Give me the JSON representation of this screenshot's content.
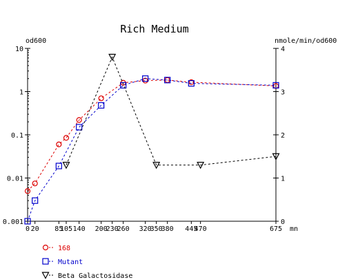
{
  "chart_data": {
    "type": "line",
    "title": "Rich Medium",
    "ylabel_left": "od600",
    "ylabel_right": "nmole/min/od600",
    "xunit": "mn",
    "x_ticks": [
      0,
      20,
      85,
      105,
      140,
      200,
      230,
      260,
      320,
      350,
      380,
      445,
      470,
      675
    ],
    "x_tick_labels": [
      "0",
      "20",
      "85",
      "105",
      "140",
      "200",
      "230",
      "260",
      "320",
      "350",
      "380",
      "445",
      "470",
      "675"
    ],
    "xlim": [
      0,
      675
    ],
    "ylim_left": [
      0.001,
      10
    ],
    "yscale_left": "log",
    "y_ticks_left": [
      "10",
      "1",
      "0.1",
      "0.01",
      "0.001"
    ],
    "ylim_right": [
      0,
      4
    ],
    "y_ticks_right": [
      "4",
      "3",
      "2",
      "1",
      "0"
    ],
    "grid": false,
    "legend_placement": "bottom-left",
    "series": [
      {
        "name": "168",
        "axis": "left",
        "marker": "circle",
        "color": "#dd0000",
        "x": [
          0,
          20,
          85,
          105,
          140,
          200,
          260,
          320,
          380,
          445,
          675
        ],
        "y": [
          0.005,
          0.0075,
          0.06,
          0.085,
          0.22,
          0.7,
          1.6,
          1.8,
          1.85,
          1.65,
          1.35
        ]
      },
      {
        "name": "Mutant",
        "axis": "left",
        "marker": "square",
        "color": "#0000cc",
        "x": [
          0,
          20,
          85,
          140,
          200,
          260,
          320,
          380,
          445,
          675
        ],
        "y": [
          0.001,
          0.003,
          0.019,
          0.15,
          0.48,
          1.4,
          2.0,
          1.85,
          1.55,
          1.4
        ]
      },
      {
        "name": "Beta Galactosidase",
        "axis": "right",
        "marker": "triangle-down",
        "color": "#000000",
        "x": [
          105,
          230,
          350,
          470,
          675
        ],
        "y": [
          1.3,
          3.8,
          1.3,
          1.3,
          1.5
        ]
      }
    ]
  }
}
